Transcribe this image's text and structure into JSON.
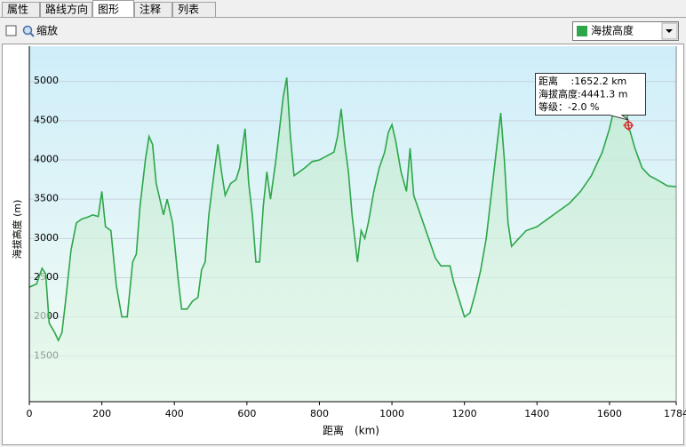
{
  "tabs": [
    "属性",
    "路线方向",
    "图形",
    "注释",
    "列表"
  ],
  "active_tab": 2,
  "toolbar": {
    "checkbox_label": "缩放"
  },
  "chart_data": {
    "type": "line",
    "x_label": "距离　(km)",
    "y_label": "海拔高度 (m)",
    "xlim": [
      0,
      1784
    ],
    "xticks": [
      0,
      200,
      400,
      600,
      800,
      1000,
      1200,
      1400,
      1600,
      1784
    ],
    "ylim": [
      920,
      5450
    ],
    "yticks": [
      1500,
      2000,
      2500,
      3000,
      3500,
      4000,
      4500,
      5000
    ],
    "grid": true,
    "x": [
      0,
      20,
      35,
      45,
      55,
      70,
      80,
      90,
      100,
      115,
      130,
      145,
      160,
      175,
      190,
      200,
      210,
      225,
      240,
      255,
      270,
      285,
      295,
      305,
      320,
      330,
      340,
      350,
      360,
      370,
      380,
      395,
      410,
      420,
      435,
      450,
      465,
      475,
      485,
      495,
      510,
      520,
      530,
      540,
      555,
      570,
      580,
      595,
      605,
      615,
      625,
      635,
      645,
      655,
      665,
      680,
      690,
      700,
      710,
      720,
      730,
      745,
      760,
      780,
      800,
      820,
      840,
      850,
      860,
      870,
      880,
      890,
      905,
      915,
      925,
      935,
      950,
      965,
      980,
      990,
      1000,
      1010,
      1025,
      1040,
      1050,
      1060,
      1075,
      1090,
      1105,
      1120,
      1135,
      1150,
      1160,
      1170,
      1180,
      1190,
      1200,
      1215,
      1230,
      1245,
      1260,
      1275,
      1290,
      1300,
      1310,
      1320,
      1330,
      1350,
      1370,
      1400,
      1430,
      1460,
      1490,
      1520,
      1550,
      1580,
      1600,
      1620,
      1635,
      1652.2,
      1670,
      1690,
      1710,
      1730,
      1760,
      1784
    ],
    "series": [
      {
        "name": "海拔高度",
        "color": "#2ea64a",
        "values": [
          2380,
          2420,
          2620,
          2550,
          1920,
          1800,
          1700,
          1800,
          2200,
          2850,
          3200,
          3250,
          3270,
          3300,
          3280,
          3600,
          3150,
          3100,
          2400,
          2000,
          2000,
          2700,
          2800,
          3400,
          4000,
          4300,
          4200,
          3700,
          3500,
          3300,
          3500,
          3200,
          2500,
          2100,
          2100,
          2200,
          2250,
          2600,
          2700,
          3300,
          3850,
          4200,
          3850,
          3550,
          3700,
          3750,
          3900,
          4400,
          3700,
          3300,
          2700,
          2700,
          3400,
          3850,
          3500,
          4000,
          4400,
          4800,
          5050,
          4300,
          3800,
          3850,
          3900,
          3980,
          4000,
          4050,
          4100,
          4300,
          4650,
          4200,
          3850,
          3300,
          2700,
          3100,
          3000,
          3200,
          3600,
          3900,
          4100,
          4350,
          4450,
          4250,
          3850,
          3600,
          4150,
          3550,
          3350,
          3150,
          2950,
          2750,
          2650,
          2650,
          2650,
          2450,
          2300,
          2150,
          2000,
          2050,
          2300,
          2600,
          3000,
          3600,
          4200,
          4600,
          4000,
          3200,
          2900,
          3000,
          3100,
          3150,
          3250,
          3350,
          3450,
          3600,
          3800,
          4100,
          4400,
          4800,
          5000,
          4441.3,
          4150,
          3900,
          3800,
          3750,
          3670,
          3660
        ]
      }
    ],
    "cursor": {
      "x": 1652.2,
      "y": 4441.3,
      "lines": [
        "距离　 :1652.2 km",
        "海拔高度:4441.3 m",
        "等级：-2.0 %"
      ]
    }
  }
}
